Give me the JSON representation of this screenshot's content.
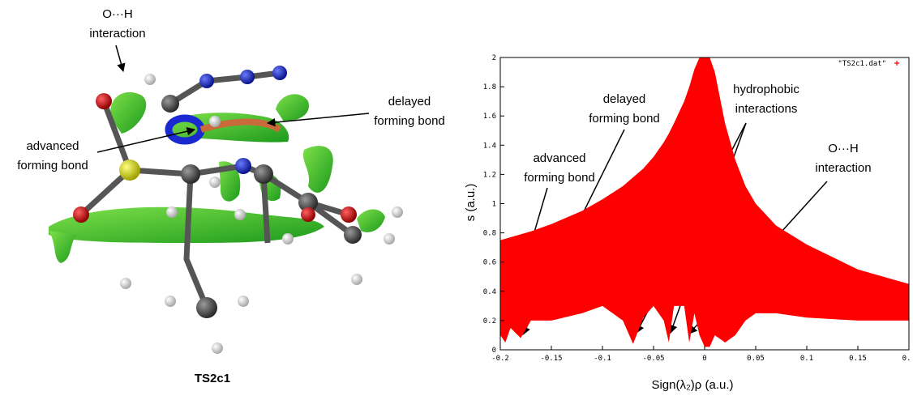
{
  "figure": {
    "label": "TS2c1",
    "annotations": [
      {
        "lines": [
          "O···H",
          "interaction"
        ]
      },
      {
        "lines": [
          "delayed",
          "forming bond"
        ]
      },
      {
        "lines": [
          "advanced",
          "forming bond"
        ]
      }
    ]
  },
  "chart_data": {
    "type": "area",
    "xlabel": "Sign(λ₂)ρ (a.u.)",
    "ylabel": "s (a.u.)",
    "x": [
      -0.2,
      -0.195,
      -0.19,
      -0.18,
      -0.17,
      -0.15,
      -0.12,
      -0.1,
      -0.08,
      -0.07,
      -0.06,
      -0.05,
      -0.04,
      -0.035,
      -0.03,
      -0.02,
      -0.015,
      -0.01,
      -0.005,
      0,
      0.005,
      0.01,
      0.02,
      0.03,
      0.04,
      0.05,
      0.07,
      0.1,
      0.15,
      0.2
    ],
    "series": [
      {
        "name": "\"TS2c1.dat\"",
        "color": "#ff0000",
        "values": [
          0.75,
          0.76,
          0.77,
          0.79,
          0.81,
          0.86,
          0.95,
          1.03,
          1.12,
          1.18,
          1.24,
          1.32,
          1.42,
          1.48,
          1.55,
          1.7,
          1.8,
          1.92,
          2,
          2,
          2,
          1.9,
          1.55,
          1.3,
          1.12,
          1.0,
          0.85,
          0.72,
          0.55,
          0.45
        ],
        "lower": [
          0.1,
          0.05,
          0.15,
          0.08,
          0.2,
          0.2,
          0.25,
          0.3,
          0.2,
          0.04,
          0.22,
          0.3,
          0.2,
          0.05,
          0.3,
          0.3,
          0.05,
          0.25,
          0.1,
          0.02,
          0.02,
          0.1,
          0.05,
          0.1,
          0.2,
          0.25,
          0.25,
          0.22,
          0.2,
          0.2
        ]
      }
    ],
    "xlim": [
      -0.2,
      0.2
    ],
    "ylim": [
      0,
      2
    ],
    "xticks": [
      -0.2,
      -0.15,
      -0.1,
      -0.05,
      0,
      0.05,
      0.1,
      0.15,
      {
        "value": 0.2,
        "label": "0."
      }
    ],
    "yticks": [
      0,
      0.2,
      0.4,
      0.6,
      0.8,
      1,
      1.2,
      1.4,
      1.6,
      1.8,
      2
    ],
    "legend": "upper right",
    "annotations": [
      {
        "lines": [
          "advanced",
          "forming bond"
        ]
      },
      {
        "lines": [
          "delayed",
          "forming bond"
        ]
      },
      {
        "lines": [
          "hydrophobic",
          "interactions"
        ]
      },
      {
        "lines": [
          "O···H",
          "interaction"
        ]
      }
    ]
  }
}
